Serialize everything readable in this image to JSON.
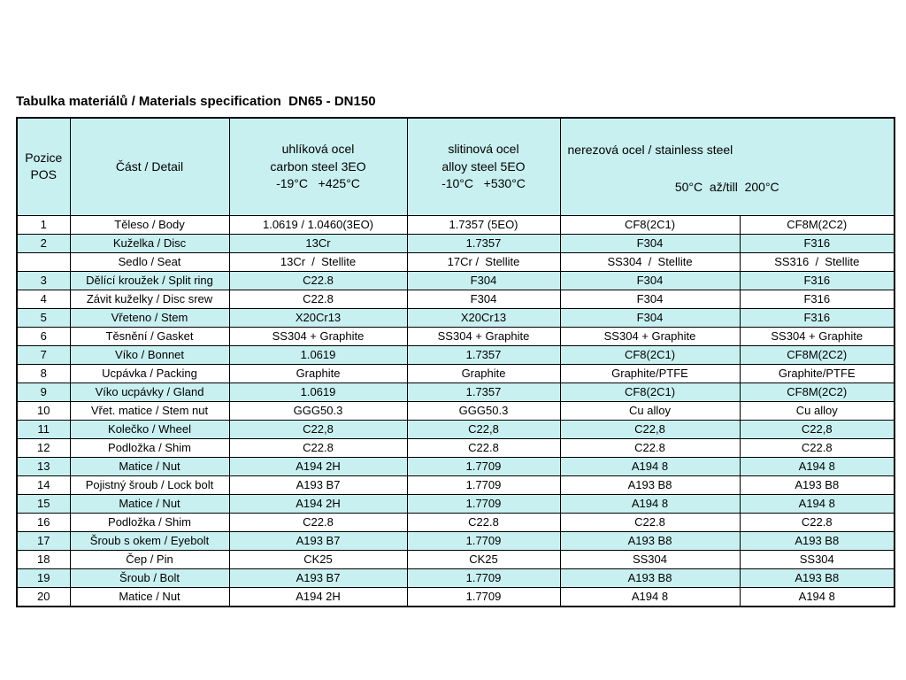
{
  "page": {
    "title": "Tabulka materiálů / Materials specification  DN65 - DN150"
  },
  "table": {
    "stripe_color": "#c9f0f0",
    "header": {
      "pos": "Pozice\nPOS",
      "part": "Část / Detail",
      "carbon": "uhlíková ocel\ncarbon steel 3EO\n-19°C   +425°C",
      "alloy": "slitinová ocel\nalloy steel 5EO\n-10°C   +530°C",
      "stainless_line1": "nerezová ocel / stainless steel",
      "stainless_line2": "50°C  až/till  200°C"
    },
    "rows": [
      {
        "pos": "1",
        "part": "Těleso / Body",
        "cols": [
          "1.0619 / 1.0460(3EO)",
          "1.7357 (5EO)",
          "CF8(2C1)",
          "CF8M(2C2)"
        ]
      },
      {
        "pos": "2",
        "part": "Kuželka / Disc",
        "cols": [
          "13Cr",
          "1.7357",
          "F304",
          "F316"
        ]
      },
      {
        "pos": "",
        "part": "Sedlo / Seat",
        "cols": [
          "13Cr  /  Stellite",
          "17Cr /  Stellite",
          "SS304  /  Stellite",
          "SS316  /  Stellite"
        ]
      },
      {
        "pos": "3",
        "part": "Dělící kroužek / Split ring",
        "cols": [
          "C22.8",
          "F304",
          "F304",
          "F316"
        ]
      },
      {
        "pos": "4",
        "part": "Závit kuželky / Disc srew",
        "cols": [
          "C22.8",
          "F304",
          "F304",
          "F316"
        ]
      },
      {
        "pos": "5",
        "part": "Vřeteno / Stem",
        "cols": [
          "X20Cr13",
          "X20Cr13",
          "F304",
          "F316"
        ]
      },
      {
        "pos": "6",
        "part": "Těsnění / Gasket",
        "cols": [
          "SS304 + Graphite",
          "SS304 + Graphite",
          "SS304 + Graphite",
          "SS304 + Graphite"
        ]
      },
      {
        "pos": "7",
        "part": "Víko / Bonnet",
        "cols": [
          "1.0619",
          "1.7357",
          "CF8(2C1)",
          "CF8M(2C2)"
        ]
      },
      {
        "pos": "8",
        "part": "Ucpávka / Packing",
        "cols": [
          "Graphite",
          "Graphite",
          "Graphite/PTFE",
          "Graphite/PTFE"
        ]
      },
      {
        "pos": "9",
        "part": "Víko ucpávky / Gland",
        "cols": [
          "1.0619",
          "1.7357",
          "CF8(2C1)",
          "CF8M(2C2)"
        ]
      },
      {
        "pos": "10",
        "part": "Vřet. matice / Stem nut",
        "cols": [
          "GGG50.3",
          "GGG50.3",
          "Cu alloy",
          "Cu alloy"
        ]
      },
      {
        "pos": "11",
        "part": "Kolečko / Wheel",
        "cols": [
          "C22,8",
          "C22,8",
          "C22,8",
          "C22,8"
        ]
      },
      {
        "pos": "12",
        "part": "Podložka / Shim",
        "cols": [
          "C22.8",
          "C22.8",
          "C22.8",
          "C22.8"
        ]
      },
      {
        "pos": "13",
        "part": "Matice / Nut",
        "cols": [
          "A194 2H",
          "1.7709",
          "A194 8",
          "A194 8"
        ]
      },
      {
        "pos": "14",
        "part": "Pojistný šroub / Lock bolt",
        "cols": [
          "A193 B7",
          "1.7709",
          "A193 B8",
          "A193 B8"
        ]
      },
      {
        "pos": "15",
        "part": "Matice / Nut",
        "cols": [
          "A194 2H",
          "1.7709",
          "A194 8",
          "A194 8"
        ]
      },
      {
        "pos": "16",
        "part": "Podložka / Shim",
        "cols": [
          "C22.8",
          "C22.8",
          "C22.8",
          "C22.8"
        ]
      },
      {
        "pos": "17",
        "part": "Šroub s okem / Eyebolt",
        "cols": [
          "A193 B7",
          "1.7709",
          "A193 B8",
          "A193 B8"
        ]
      },
      {
        "pos": "18",
        "part": "Čep / Pin",
        "cols": [
          "CK25",
          "CK25",
          "SS304",
          "SS304"
        ]
      },
      {
        "pos": "19",
        "part": "Šroub / Bolt",
        "cols": [
          "A193 B7",
          "1.7709",
          "A193 B8",
          "A193 B8"
        ]
      },
      {
        "pos": "20",
        "part": "Matice / Nut",
        "cols": [
          "A194 2H",
          "1.7709",
          "A194 8",
          "A194 8"
        ]
      }
    ]
  }
}
